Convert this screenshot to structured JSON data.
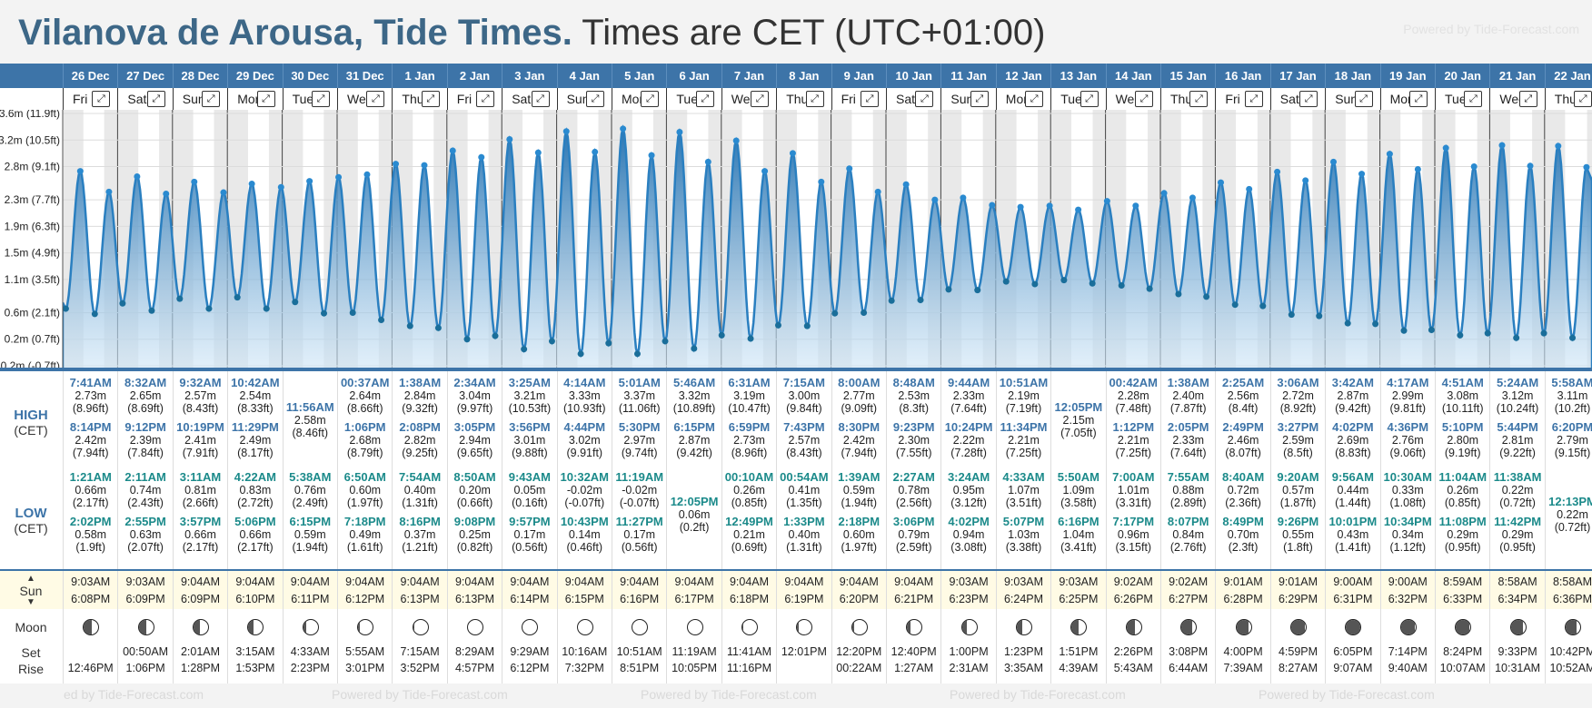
{
  "header": {
    "place_title": "Vilanova de Arousa, Tide Times.",
    "tz_note": "Times are CET (UTC+01:00)",
    "powered_by": "Powered by Tide-Forecast.com"
  },
  "labels": {
    "high": "HIGH",
    "high_sub": "(CET)",
    "low": "LOW",
    "low_sub": "(CET)",
    "sun": "Sun",
    "moon": "Moon",
    "set": "Set",
    "rise": "Rise",
    "expand_icon": "expand-icon"
  },
  "footer": {
    "powered_by": "Powered by Tide-Forecast.com",
    "powered_by_cut": "ed by Tide-Forecast.com"
  },
  "colors": {
    "accent": "#3d74a8",
    "tide_fill": "#2a7fc0",
    "tide_dot": "#1a6e9a",
    "low_text": "#1b8a8a",
    "sun_bg": "#fffbe5"
  },
  "chart_data": {
    "type": "area",
    "ylabel_ticks": [
      "-0.2m (-0.7ft)",
      "0.2m (0.7ft)",
      "0.6m (2.1ft)",
      "1.1m (3.5ft)",
      "1.5m (4.9ft)",
      "1.9m (6.3ft)",
      "2.3m (7.7ft)",
      "2.8m (9.1ft)",
      "3.2m (10.5ft)",
      "3.6m (11.9ft)"
    ],
    "y_values_ticks": [
      -0.2,
      0.2,
      0.6,
      1.1,
      1.5,
      1.9,
      2.3,
      2.8,
      3.2,
      3.6
    ],
    "ylim": [
      -0.2,
      3.6
    ],
    "grid": true
  },
  "days": [
    {
      "date": "26 Dec",
      "dow": "Fri",
      "high": [
        {
          "t": "7:41AM",
          "m": "2.73m",
          "f": "(8.96ft)"
        },
        {
          "t": "8:14PM",
          "m": "2.42m",
          "f": "(7.94ft)"
        }
      ],
      "low": [
        {
          "t": "1:21AM",
          "m": "0.66m",
          "f": "(2.17ft)"
        },
        {
          "t": "2:02PM",
          "m": "0.58m",
          "f": "(1.9ft)"
        }
      ],
      "sun_rise": "9:03AM",
      "sun_set": "6:08PM",
      "moon_set": "",
      "moon_rise": "12:46PM",
      "phase": 0.55
    },
    {
      "date": "27 Dec",
      "dow": "Sat",
      "high": [
        {
          "t": "8:32AM",
          "m": "2.65m",
          "f": "(8.69ft)"
        },
        {
          "t": "9:12PM",
          "m": "2.39m",
          "f": "(7.84ft)"
        }
      ],
      "low": [
        {
          "t": "2:11AM",
          "m": "0.74m",
          "f": "(2.43ft)"
        },
        {
          "t": "2:55PM",
          "m": "0.63m",
          "f": "(2.07ft)"
        }
      ],
      "sun_rise": "9:03AM",
      "sun_set": "6:09PM",
      "moon_set": "00:50AM",
      "moon_rise": "1:06PM",
      "phase": 0.5
    },
    {
      "date": "28 Dec",
      "dow": "Sun",
      "high": [
        {
          "t": "9:32AM",
          "m": "2.57m",
          "f": "(8.43ft)"
        },
        {
          "t": "10:19PM",
          "m": "2.41m",
          "f": "(7.91ft)"
        }
      ],
      "low": [
        {
          "t": "3:11AM",
          "m": "0.81m",
          "f": "(2.66ft)"
        },
        {
          "t": "3:57PM",
          "m": "0.66m",
          "f": "(2.17ft)"
        }
      ],
      "sun_rise": "9:04AM",
      "sun_set": "6:09PM",
      "moon_set": "2:01AM",
      "moon_rise": "1:28PM",
      "phase": 0.42
    },
    {
      "date": "29 Dec",
      "dow": "Mon",
      "high": [
        {
          "t": "10:42AM",
          "m": "2.54m",
          "f": "(8.33ft)"
        },
        {
          "t": "11:29PM",
          "m": "2.49m",
          "f": "(8.17ft)"
        }
      ],
      "low": [
        {
          "t": "4:22AM",
          "m": "0.83m",
          "f": "(2.72ft)"
        },
        {
          "t": "5:06PM",
          "m": "0.66m",
          "f": "(2.17ft)"
        }
      ],
      "sun_rise": "9:04AM",
      "sun_set": "6:10PM",
      "moon_set": "3:15AM",
      "moon_rise": "1:53PM",
      "phase": 0.33
    },
    {
      "date": "30 Dec",
      "dow": "Tue",
      "high": [
        {
          "t": "11:56AM",
          "m": "2.58m",
          "f": "(8.46ft)"
        }
      ],
      "low": [
        {
          "t": "5:38AM",
          "m": "0.76m",
          "f": "(2.49ft)"
        },
        {
          "t": "6:15PM",
          "m": "0.59m",
          "f": "(1.94ft)"
        }
      ],
      "sun_rise": "9:04AM",
      "sun_set": "6:11PM",
      "moon_set": "4:33AM",
      "moon_rise": "2:23PM",
      "phase": 0.22
    },
    {
      "date": "31 Dec",
      "dow": "Wed",
      "high": [
        {
          "t": "00:37AM",
          "m": "2.64m",
          "f": "(8.66ft)"
        },
        {
          "t": "1:06PM",
          "m": "2.68m",
          "f": "(8.79ft)"
        }
      ],
      "low": [
        {
          "t": "6:50AM",
          "m": "0.60m",
          "f": "(1.97ft)"
        },
        {
          "t": "7:18PM",
          "m": "0.49m",
          "f": "(1.61ft)"
        }
      ],
      "sun_rise": "9:04AM",
      "sun_set": "6:12PM",
      "moon_set": "5:55AM",
      "moon_rise": "3:01PM",
      "phase": 0.14
    },
    {
      "date": "1 Jan",
      "dow": "Thu",
      "high": [
        {
          "t": "1:38AM",
          "m": "2.84m",
          "f": "(9.32ft)"
        },
        {
          "t": "2:08PM",
          "m": "2.82m",
          "f": "(9.25ft)"
        }
      ],
      "low": [
        {
          "t": "7:54AM",
          "m": "0.40m",
          "f": "(1.31ft)"
        },
        {
          "t": "8:16PM",
          "m": "0.37m",
          "f": "(1.21ft)"
        }
      ],
      "sun_rise": "9:04AM",
      "sun_set": "6:13PM",
      "moon_set": "7:15AM",
      "moon_rise": "3:52PM",
      "phase": 0.07
    },
    {
      "date": "2 Jan",
      "dow": "Fri",
      "high": [
        {
          "t": "2:34AM",
          "m": "3.04m",
          "f": "(9.97ft)"
        },
        {
          "t": "3:05PM",
          "m": "2.94m",
          "f": "(9.65ft)"
        }
      ],
      "low": [
        {
          "t": "8:50AM",
          "m": "0.20m",
          "f": "(0.66ft)"
        },
        {
          "t": "9:08PM",
          "m": "0.25m",
          "f": "(0.82ft)"
        }
      ],
      "sun_rise": "9:04AM",
      "sun_set": "6:13PM",
      "moon_set": "8:29AM",
      "moon_rise": "4:57PM",
      "phase": 0.0
    },
    {
      "date": "3 Jan",
      "dow": "Sat",
      "high": [
        {
          "t": "3:25AM",
          "m": "3.21m",
          "f": "(10.53ft)"
        },
        {
          "t": "3:56PM",
          "m": "3.01m",
          "f": "(9.88ft)"
        }
      ],
      "low": [
        {
          "t": "9:43AM",
          "m": "0.05m",
          "f": "(0.16ft)"
        },
        {
          "t": "9:57PM",
          "m": "0.17m",
          "f": "(0.56ft)"
        }
      ],
      "sun_rise": "9:04AM",
      "sun_set": "6:14PM",
      "moon_set": "9:29AM",
      "moon_rise": "6:12PM",
      "phase": 0.0
    },
    {
      "date": "4 Jan",
      "dow": "Sun",
      "high": [
        {
          "t": "4:14AM",
          "m": "3.33m",
          "f": "(10.93ft)"
        },
        {
          "t": "4:44PM",
          "m": "3.02m",
          "f": "(9.91ft)"
        }
      ],
      "low": [
        {
          "t": "10:32AM",
          "m": "-0.02m",
          "f": "(-0.07ft)"
        },
        {
          "t": "10:43PM",
          "m": "0.14m",
          "f": "(0.46ft)"
        }
      ],
      "sun_rise": "9:04AM",
      "sun_set": "6:15PM",
      "moon_set": "10:16AM",
      "moon_rise": "7:32PM",
      "phase": 0.0
    },
    {
      "date": "5 Jan",
      "dow": "Mon",
      "high": [
        {
          "t": "5:01AM",
          "m": "3.37m",
          "f": "(11.06ft)"
        },
        {
          "t": "5:30PM",
          "m": "2.97m",
          "f": "(9.74ft)"
        }
      ],
      "low": [
        {
          "t": "11:19AM",
          "m": "-0.02m",
          "f": "(-0.07ft)"
        },
        {
          "t": "11:27PM",
          "m": "0.17m",
          "f": "(0.56ft)"
        }
      ],
      "sun_rise": "9:04AM",
      "sun_set": "6:16PM",
      "moon_set": "10:51AM",
      "moon_rise": "8:51PM",
      "phase": 0.0
    },
    {
      "date": "6 Jan",
      "dow": "Tue",
      "high": [
        {
          "t": "5:46AM",
          "m": "3.32m",
          "f": "(10.89ft)"
        },
        {
          "t": "6:15PM",
          "m": "2.87m",
          "f": "(9.42ft)"
        }
      ],
      "low": [
        {
          "t": "12:05PM",
          "m": "0.06m",
          "f": "(0.2ft)"
        }
      ],
      "sun_rise": "9:04AM",
      "sun_set": "6:17PM",
      "moon_set": "11:19AM",
      "moon_rise": "10:05PM",
      "phase": 0.02
    },
    {
      "date": "7 Jan",
      "dow": "Wed",
      "high": [
        {
          "t": "6:31AM",
          "m": "3.19m",
          "f": "(10.47ft)"
        },
        {
          "t": "6:59PM",
          "m": "2.73m",
          "f": "(8.96ft)"
        }
      ],
      "low": [
        {
          "t": "00:10AM",
          "m": "0.26m",
          "f": "(0.85ft)"
        },
        {
          "t": "12:49PM",
          "m": "0.21m",
          "f": "(0.69ft)"
        }
      ],
      "sun_rise": "9:04AM",
      "sun_set": "6:18PM",
      "moon_set": "11:41AM",
      "moon_rise": "11:16PM",
      "phase": 0.05
    },
    {
      "date": "8 Jan",
      "dow": "Thu",
      "high": [
        {
          "t": "7:15AM",
          "m": "3.00m",
          "f": "(9.84ft)"
        },
        {
          "t": "7:43PM",
          "m": "2.57m",
          "f": "(8.43ft)"
        }
      ],
      "low": [
        {
          "t": "00:54AM",
          "m": "0.41m",
          "f": "(1.35ft)"
        },
        {
          "t": "1:33PM",
          "m": "0.40m",
          "f": "(1.31ft)"
        }
      ],
      "sun_rise": "9:04AM",
      "sun_set": "6:19PM",
      "moon_set": "12:01PM",
      "moon_rise": "",
      "phase": 0.1
    },
    {
      "date": "9 Jan",
      "dow": "Fri",
      "high": [
        {
          "t": "8:00AM",
          "m": "2.77m",
          "f": "(9.09ft)"
        },
        {
          "t": "8:30PM",
          "m": "2.42m",
          "f": "(7.94ft)"
        }
      ],
      "low": [
        {
          "t": "1:39AM",
          "m": "0.59m",
          "f": "(1.94ft)"
        },
        {
          "t": "2:18PM",
          "m": "0.60m",
          "f": "(1.97ft)"
        }
      ],
      "sun_rise": "9:04AM",
      "sun_set": "6:20PM",
      "moon_set": "12:20PM",
      "moon_rise": "00:22AM",
      "phase": 0.16
    },
    {
      "date": "10 Jan",
      "dow": "Sat",
      "high": [
        {
          "t": "8:48AM",
          "m": "2.53m",
          "f": "(8.3ft)"
        },
        {
          "t": "9:23PM",
          "m": "2.30m",
          "f": "(7.55ft)"
        }
      ],
      "low": [
        {
          "t": "2:27AM",
          "m": "0.78m",
          "f": "(2.56ft)"
        },
        {
          "t": "3:06PM",
          "m": "0.79m",
          "f": "(2.59ft)"
        }
      ],
      "sun_rise": "9:04AM",
      "sun_set": "6:21PM",
      "moon_set": "12:40PM",
      "moon_rise": "1:27AM",
      "phase": 0.24
    },
    {
      "date": "11 Jan",
      "dow": "Sun",
      "high": [
        {
          "t": "9:44AM",
          "m": "2.33m",
          "f": "(7.64ft)"
        },
        {
          "t": "10:24PM",
          "m": "2.22m",
          "f": "(7.28ft)"
        }
      ],
      "low": [
        {
          "t": "3:24AM",
          "m": "0.95m",
          "f": "(3.12ft)"
        },
        {
          "t": "4:02PM",
          "m": "0.94m",
          "f": "(3.08ft)"
        }
      ],
      "sun_rise": "9:03AM",
      "sun_set": "6:23PM",
      "moon_set": "1:00PM",
      "moon_rise": "2:31AM",
      "phase": 0.32
    },
    {
      "date": "12 Jan",
      "dow": "Mon",
      "high": [
        {
          "t": "10:51AM",
          "m": "2.19m",
          "f": "(7.19ft)"
        },
        {
          "t": "11:34PM",
          "m": "2.21m",
          "f": "(7.25ft)"
        }
      ],
      "low": [
        {
          "t": "4:33AM",
          "m": "1.07m",
          "f": "(3.51ft)"
        },
        {
          "t": "5:07PM",
          "m": "1.03m",
          "f": "(3.38ft)"
        }
      ],
      "sun_rise": "9:03AM",
      "sun_set": "6:24PM",
      "moon_set": "1:23PM",
      "moon_rise": "3:35AM",
      "phase": 0.4
    },
    {
      "date": "13 Jan",
      "dow": "Tue",
      "high": [
        {
          "t": "12:05PM",
          "m": "2.15m",
          "f": "(7.05ft)"
        }
      ],
      "low": [
        {
          "t": "5:50AM",
          "m": "1.09m",
          "f": "(3.58ft)"
        },
        {
          "t": "6:16PM",
          "m": "1.04m",
          "f": "(3.41ft)"
        }
      ],
      "sun_rise": "9:03AM",
      "sun_set": "6:25PM",
      "moon_set": "1:51PM",
      "moon_rise": "4:39AM",
      "phase": 0.5
    },
    {
      "date": "14 Jan",
      "dow": "Wed",
      "high": [
        {
          "t": "00:42AM",
          "m": "2.28m",
          "f": "(7.48ft)"
        },
        {
          "t": "1:12PM",
          "m": "2.21m",
          "f": "(7.25ft)"
        }
      ],
      "low": [
        {
          "t": "7:00AM",
          "m": "1.01m",
          "f": "(3.31ft)"
        },
        {
          "t": "7:17PM",
          "m": "0.96m",
          "f": "(3.15ft)"
        }
      ],
      "sun_rise": "9:02AM",
      "sun_set": "6:26PM",
      "moon_set": "2:26PM",
      "moon_rise": "5:43AM",
      "phase": 0.6
    },
    {
      "date": "15 Jan",
      "dow": "Thu",
      "high": [
        {
          "t": "1:38AM",
          "m": "2.40m",
          "f": "(7.87ft)"
        },
        {
          "t": "2:05PM",
          "m": "2.33m",
          "f": "(7.64ft)"
        }
      ],
      "low": [
        {
          "t": "7:55AM",
          "m": "0.88m",
          "f": "(2.89ft)"
        },
        {
          "t": "8:07PM",
          "m": "0.84m",
          "f": "(2.76ft)"
        }
      ],
      "sun_rise": "9:02AM",
      "sun_set": "6:27PM",
      "moon_set": "3:08PM",
      "moon_rise": "6:44AM",
      "phase": 0.72
    },
    {
      "date": "16 Jan",
      "dow": "Fri",
      "high": [
        {
          "t": "2:25AM",
          "m": "2.56m",
          "f": "(8.4ft)"
        },
        {
          "t": "2:49PM",
          "m": "2.46m",
          "f": "(8.07ft)"
        }
      ],
      "low": [
        {
          "t": "8:40AM",
          "m": "0.72m",
          "f": "(2.36ft)"
        },
        {
          "t": "8:49PM",
          "m": "0.70m",
          "f": "(2.3ft)"
        }
      ],
      "sun_rise": "9:01AM",
      "sun_set": "6:28PM",
      "moon_set": "4:00PM",
      "moon_rise": "7:39AM",
      "phase": 0.85
    },
    {
      "date": "17 Jan",
      "dow": "Sat",
      "high": [
        {
          "t": "3:06AM",
          "m": "2.72m",
          "f": "(8.92ft)"
        },
        {
          "t": "3:27PM",
          "m": "2.59m",
          "f": "(8.5ft)"
        }
      ],
      "low": [
        {
          "t": "9:20AM",
          "m": "0.57m",
          "f": "(1.87ft)"
        },
        {
          "t": "9:26PM",
          "m": "0.55m",
          "f": "(1.8ft)"
        }
      ],
      "sun_rise": "9:01AM",
      "sun_set": "6:29PM",
      "moon_set": "4:59PM",
      "moon_rise": "8:27AM",
      "phase": 0.95
    },
    {
      "date": "18 Jan",
      "dow": "Sun",
      "high": [
        {
          "t": "3:42AM",
          "m": "2.87m",
          "f": "(9.42ft)"
        },
        {
          "t": "4:02PM",
          "m": "2.69m",
          "f": "(8.83ft)"
        }
      ],
      "low": [
        {
          "t": "9:56AM",
          "m": "0.44m",
          "f": "(1.44ft)"
        },
        {
          "t": "10:01PM",
          "m": "0.43m",
          "f": "(1.41ft)"
        }
      ],
      "sun_rise": "9:00AM",
      "sun_set": "6:31PM",
      "moon_set": "6:05PM",
      "moon_rise": "9:07AM",
      "phase": 1.0
    },
    {
      "date": "19 Jan",
      "dow": "Mon",
      "high": [
        {
          "t": "4:17AM",
          "m": "2.99m",
          "f": "(9.81ft)"
        },
        {
          "t": "4:36PM",
          "m": "2.76m",
          "f": "(9.06ft)"
        }
      ],
      "low": [
        {
          "t": "10:30AM",
          "m": "0.33m",
          "f": "(1.08ft)"
        },
        {
          "t": "10:34PM",
          "m": "0.34m",
          "f": "(1.12ft)"
        }
      ],
      "sun_rise": "9:00AM",
      "sun_set": "6:32PM",
      "moon_set": "7:14PM",
      "moon_rise": "9:40AM",
      "phase": 0.97
    },
    {
      "date": "20 Jan",
      "dow": "Tue",
      "high": [
        {
          "t": "4:51AM",
          "m": "3.08m",
          "f": "(10.11ft)"
        },
        {
          "t": "5:10PM",
          "m": "2.80m",
          "f": "(9.19ft)"
        }
      ],
      "low": [
        {
          "t": "11:04AM",
          "m": "0.26m",
          "f": "(0.85ft)"
        },
        {
          "t": "11:08PM",
          "m": "0.29m",
          "f": "(0.95ft)"
        }
      ],
      "sun_rise": "8:59AM",
      "sun_set": "6:33PM",
      "moon_set": "8:24PM",
      "moon_rise": "10:07AM",
      "phase": 0.92
    },
    {
      "date": "21 Jan",
      "dow": "Wed",
      "high": [
        {
          "t": "5:24AM",
          "m": "3.12m",
          "f": "(10.24ft)"
        },
        {
          "t": "5:44PM",
          "m": "2.81m",
          "f": "(9.22ft)"
        }
      ],
      "low": [
        {
          "t": "11:38AM",
          "m": "0.22m",
          "f": "(0.72ft)"
        },
        {
          "t": "11:42PM",
          "m": "0.29m",
          "f": "(0.95ft)"
        }
      ],
      "sun_rise": "8:58AM",
      "sun_set": "6:34PM",
      "moon_set": "9:33PM",
      "moon_rise": "10:31AM",
      "phase": 0.85
    },
    {
      "date": "22 Jan",
      "dow": "Thu",
      "high": [
        {
          "t": "5:58AM",
          "m": "3.11m",
          "f": "(10.2ft)"
        },
        {
          "t": "6:20PM",
          "m": "2.79m",
          "f": "(9.15ft)"
        }
      ],
      "low": [
        {
          "t": "12:13PM",
          "m": "0.22m",
          "f": "(0.72ft)"
        }
      ],
      "sun_rise": "8:58AM",
      "sun_set": "6:36PM",
      "moon_set": "10:42PM",
      "moon_rise": "10:52AM",
      "phase": 0.78
    }
  ]
}
